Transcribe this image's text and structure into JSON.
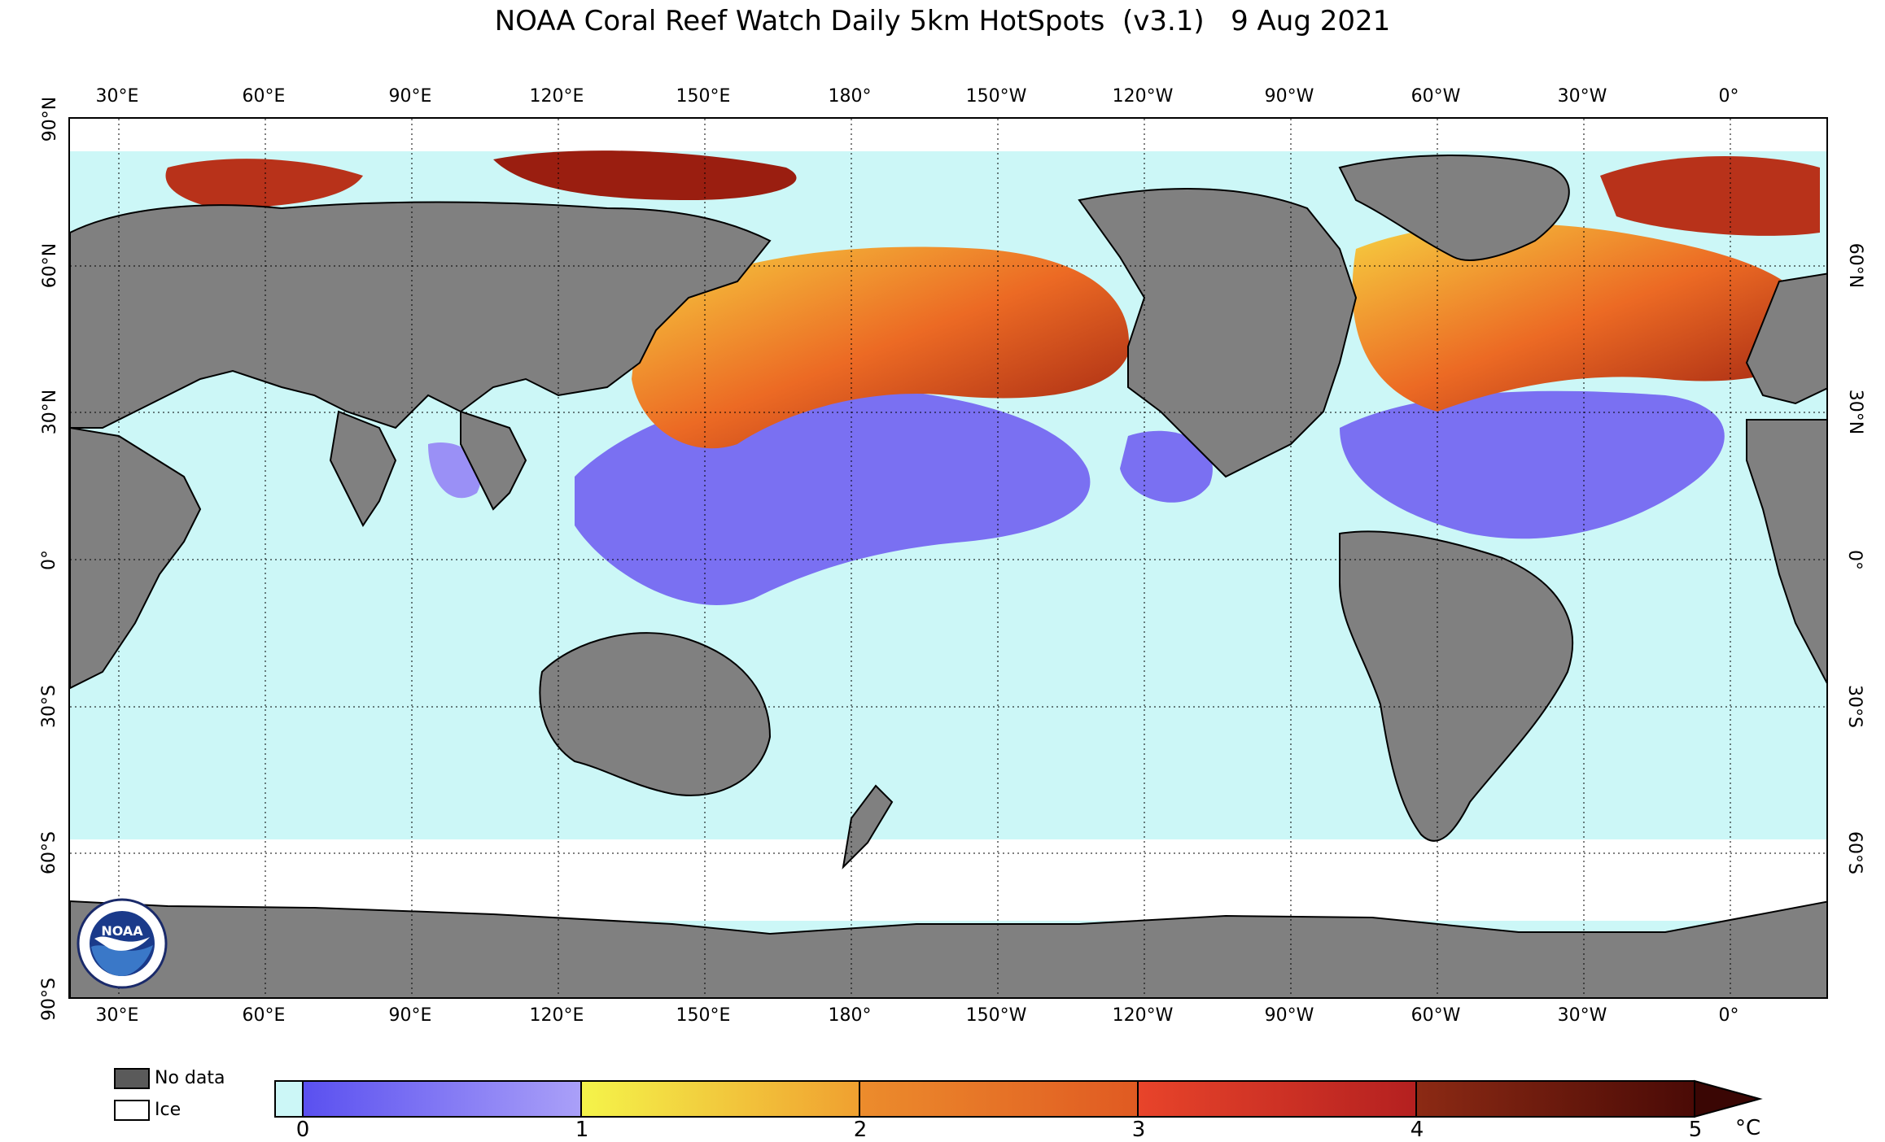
{
  "title": "NOAA Coral Reef Watch Daily 5km HotSpots  (v3.1)   9 Aug 2021",
  "map": {
    "projection": "cylindrical equidistant, centered on 180°",
    "longitude_ticks": [
      "30°E",
      "60°E",
      "90°E",
      "120°E",
      "150°E",
      "180°",
      "150°W",
      "120°W",
      "90°W",
      "60°W",
      "30°W",
      "0°"
    ],
    "latitude_ticks": [
      "90°N",
      "60°N",
      "30°N",
      "0°",
      "30°S",
      "60°S",
      "90°S"
    ],
    "colors": {
      "land_no_data": "#808080",
      "ice": "#ffffff",
      "hotspot_zero": "#ccf7f7"
    }
  },
  "legend": {
    "no_data_label": "No data",
    "ice_label": "Ice",
    "colorbar_ticks": [
      "0",
      "1",
      "2",
      "3",
      "4",
      "5"
    ],
    "colorbar_unit": "°C",
    "colorbar_range": [
      0,
      5
    ],
    "colorbar_extends": "max",
    "colorbar_segments": [
      {
        "from": 0,
        "to": 1,
        "colors": [
          "#5a50f0",
          "#aaa0f8"
        ]
      },
      {
        "from": 1,
        "to": 2,
        "colors": [
          "#f4f44a",
          "#f0a030"
        ]
      },
      {
        "from": 2,
        "to": 3,
        "colors": [
          "#ec8c2c",
          "#e05a22"
        ]
      },
      {
        "from": 3,
        "to": 4,
        "colors": [
          "#e8442a",
          "#b42020"
        ]
      },
      {
        "from": 4,
        "to": 5,
        "colors": [
          "#8c2a14",
          "#4a0a06"
        ]
      }
    ]
  },
  "logo": {
    "label": "NOAA",
    "name": "noaa-logo"
  }
}
